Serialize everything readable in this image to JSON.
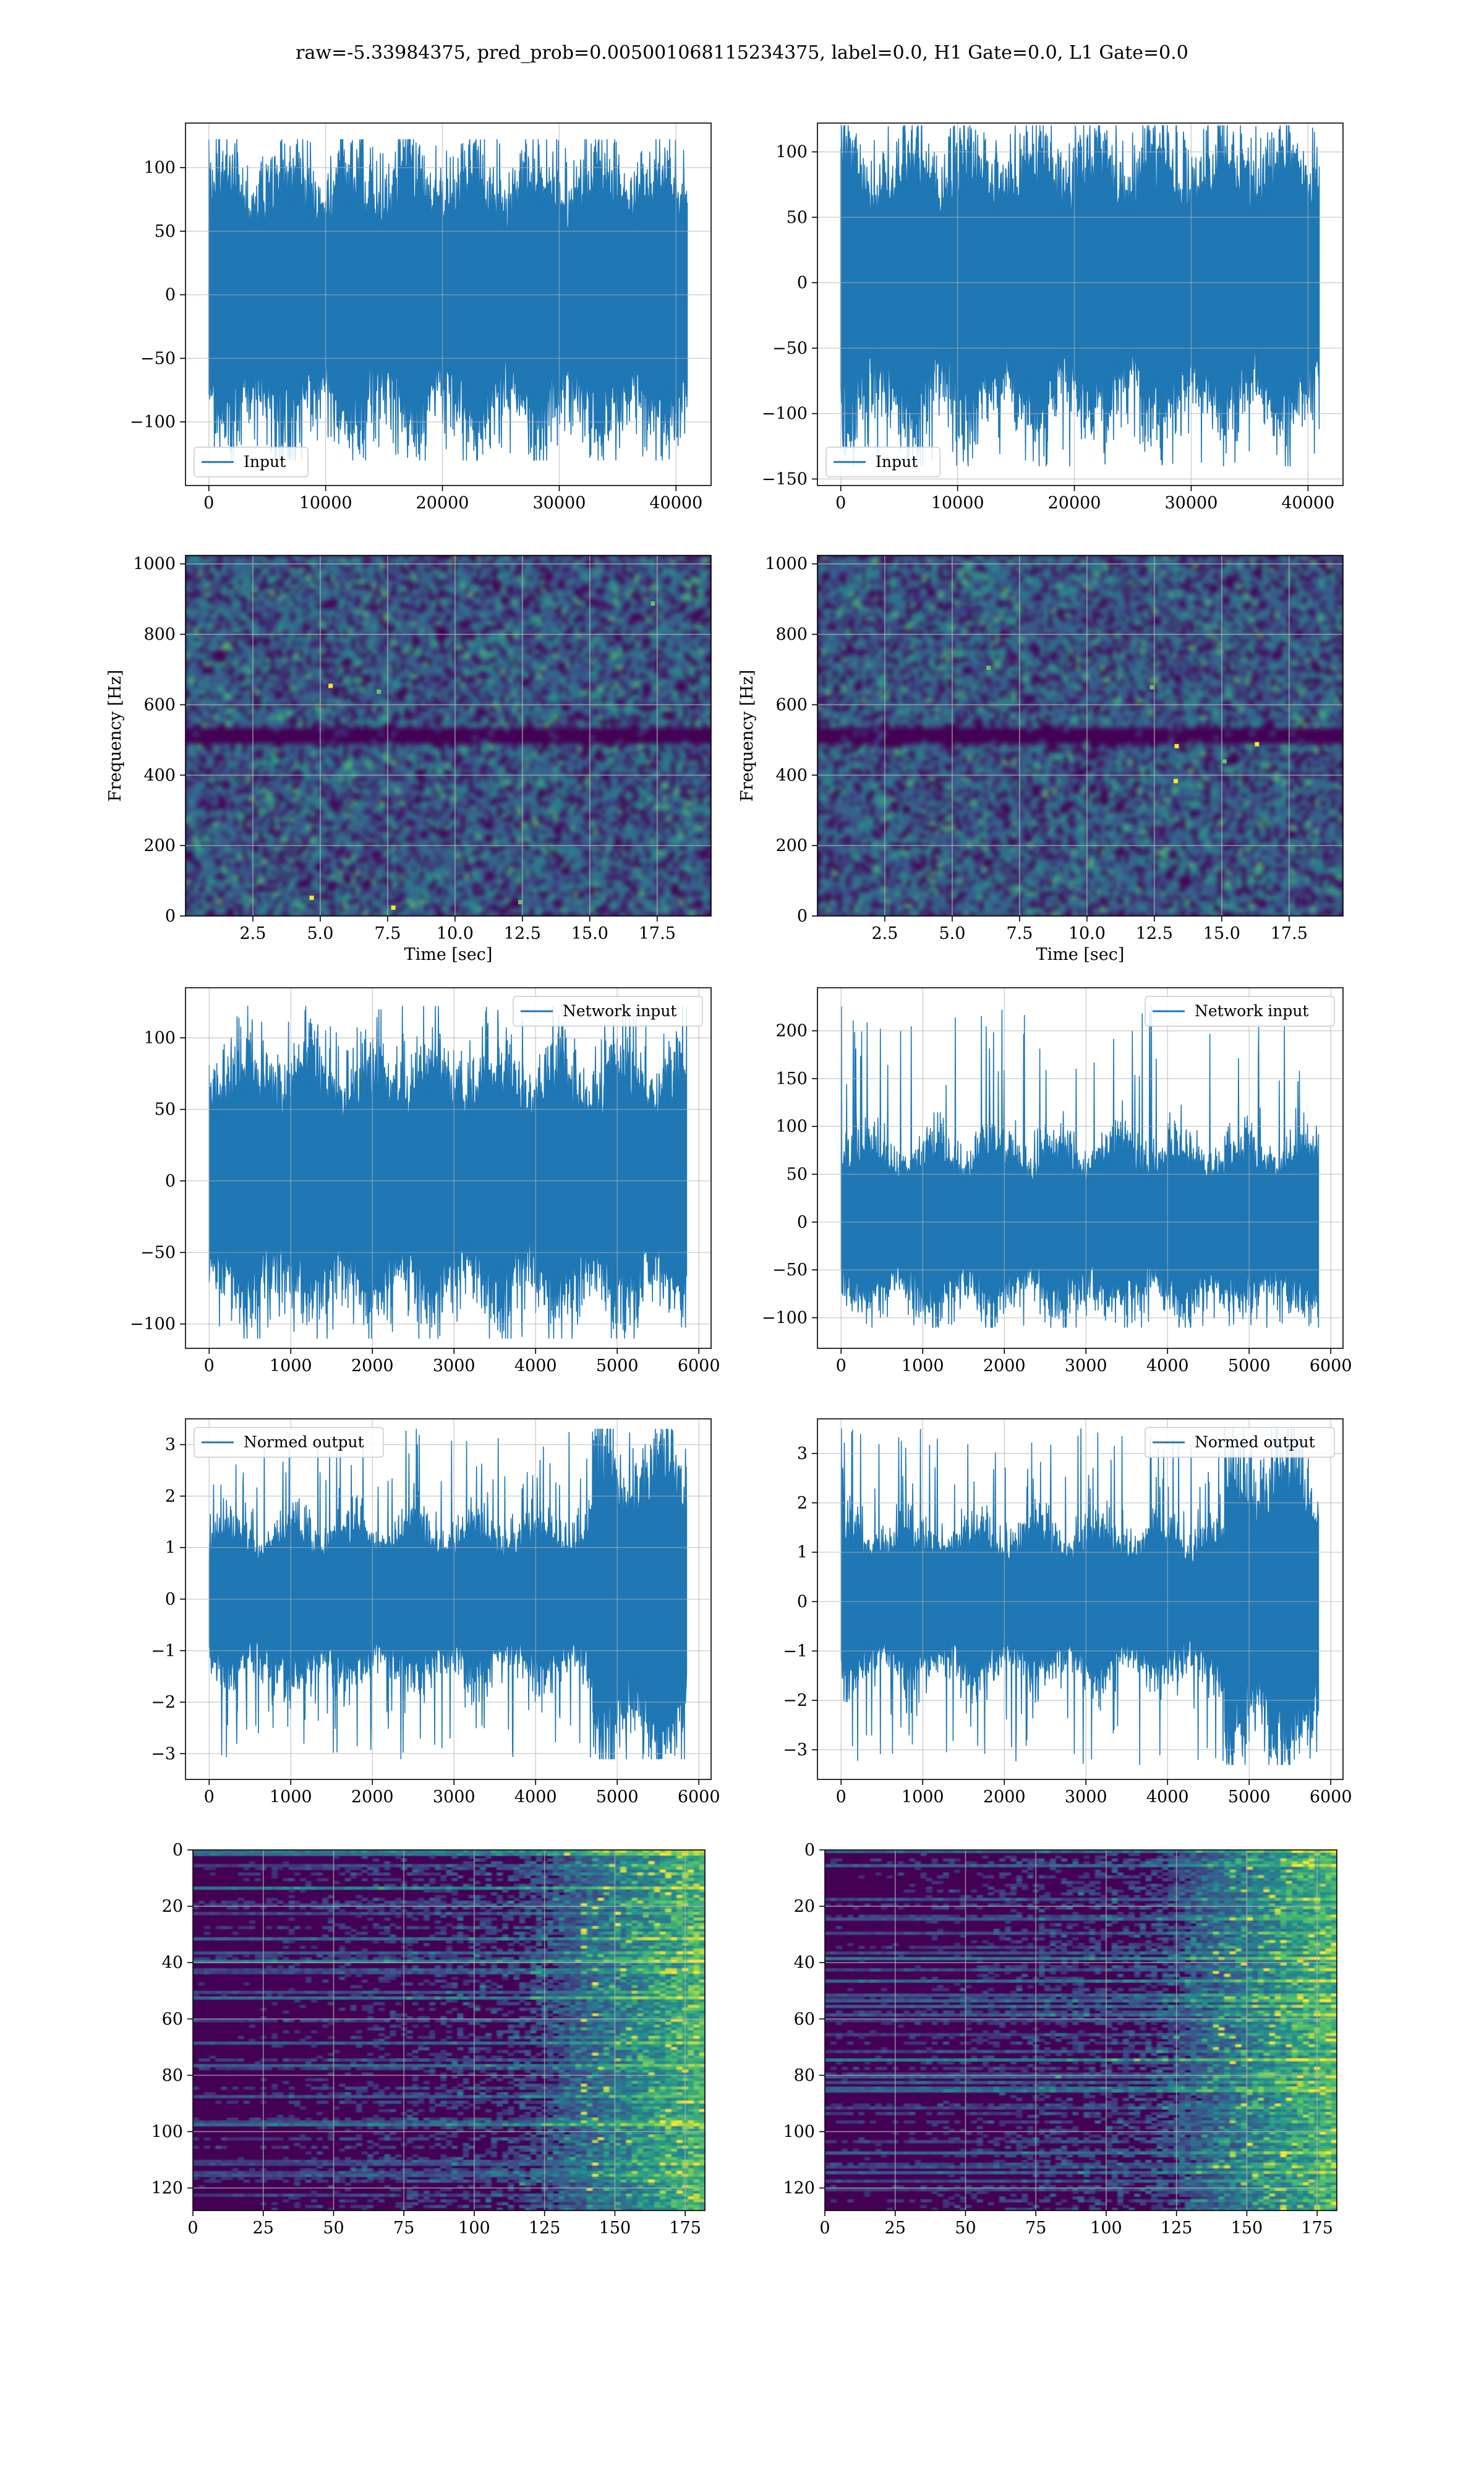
{
  "figure": {
    "suptitle": "raw=-5.33984375, pred_prob=0.005001068115234375, label=0.0, H1 Gate=0.0, L1 Gate=0.0"
  },
  "colors": {
    "line": "#1f77b4",
    "grid": "#b0b0b0",
    "heat_low": "#440154",
    "heat_mid": "#3b528b",
    "heat_teal": "#21908d",
    "heat_green": "#5dc863",
    "heat_high": "#fde725"
  },
  "chart_data": [
    {
      "type": "line",
      "panel": "row1-left",
      "xlabel": "",
      "ylabel": "",
      "xlim": [
        -2000,
        43000
      ],
      "ylim": [
        -150,
        135
      ],
      "xticks": [
        0,
        10000,
        20000,
        30000,
        40000
      ],
      "yticks": [
        -100,
        -50,
        0,
        50,
        100
      ],
      "grid": true,
      "legend": "lower left",
      "series": [
        {
          "name": "Input",
          "n_samples": 40960,
          "x_range": [
            0,
            40960
          ],
          "core_amplitude": 55,
          "peak_range": [
            -130,
            122
          ]
        }
      ]
    },
    {
      "type": "line",
      "panel": "row1-right",
      "xlabel": "",
      "ylabel": "",
      "xlim": [
        -2000,
        43000
      ],
      "ylim": [
        -155,
        122
      ],
      "xticks": [
        0,
        10000,
        20000,
        30000,
        40000
      ],
      "yticks": [
        -150,
        -100,
        -50,
        0,
        50,
        100
      ],
      "grid": true,
      "legend": "lower left",
      "series": [
        {
          "name": "Input",
          "n_samples": 40960,
          "x_range": [
            0,
            40960
          ],
          "core_amplitude": 55,
          "peak_range": [
            -140,
            120
          ]
        }
      ]
    },
    {
      "type": "heatmap",
      "panel": "row2-left",
      "xlabel": "Time [sec]",
      "ylabel": "Frequency [Hz]",
      "xlim": [
        0,
        19.5
      ],
      "ylim": [
        0,
        1024
      ],
      "xticks": [
        2.5,
        5.0,
        7.5,
        10.0,
        12.5,
        15.0,
        17.5
      ],
      "yticks": [
        0,
        200,
        400,
        600,
        800,
        1000
      ],
      "grid": true,
      "colormap": "viridis"
    },
    {
      "type": "heatmap",
      "panel": "row2-right",
      "xlabel": "Time [sec]",
      "ylabel": "Frequency [Hz]",
      "xlim": [
        0,
        19.5
      ],
      "ylim": [
        0,
        1024
      ],
      "xticks": [
        2.5,
        5.0,
        7.5,
        10.0,
        12.5,
        15.0,
        17.5
      ],
      "yticks": [
        0,
        200,
        400,
        600,
        800,
        1000
      ],
      "grid": true,
      "colormap": "viridis"
    },
    {
      "type": "line",
      "panel": "row3-left",
      "xlabel": "",
      "ylabel": "",
      "xlim": [
        -290,
        6150
      ],
      "ylim": [
        -117,
        135
      ],
      "xticks": [
        0,
        1000,
        2000,
        3000,
        4000,
        5000,
        6000
      ],
      "yticks": [
        -100,
        -50,
        0,
        50,
        100
      ],
      "grid": true,
      "legend": "upper right",
      "series": [
        {
          "name": "Network input",
          "n_samples": 5850,
          "x_range": [
            0,
            5850
          ],
          "core_amplitude": 45,
          "peak_range": [
            -110,
            122
          ]
        }
      ]
    },
    {
      "type": "line",
      "panel": "row3-right",
      "xlabel": "",
      "ylabel": "",
      "xlim": [
        -290,
        6150
      ],
      "ylim": [
        -132,
        245
      ],
      "xticks": [
        0,
        1000,
        2000,
        3000,
        4000,
        5000,
        6000
      ],
      "yticks": [
        -100,
        -50,
        0,
        50,
        100,
        150,
        200
      ],
      "grid": true,
      "legend": "upper right",
      "series": [
        {
          "name": "Network input",
          "n_samples": 5850,
          "x_range": [
            0,
            5850
          ],
          "core_amplitude": 45,
          "peak_range": [
            -110,
            225
          ]
        }
      ]
    },
    {
      "type": "line",
      "panel": "row4-left",
      "xlabel": "",
      "ylabel": "",
      "xlim": [
        -290,
        6150
      ],
      "ylim": [
        -3.5,
        3.5
      ],
      "xticks": [
        0,
        1000,
        2000,
        3000,
        4000,
        5000,
        6000
      ],
      "yticks": [
        -3,
        -2,
        -1,
        0,
        1,
        2,
        3
      ],
      "grid": true,
      "legend": "upper left",
      "series": [
        {
          "name": "Normed output",
          "n_samples": 5850,
          "x_range": [
            0,
            5850
          ],
          "core_amplitude": 0.8,
          "burst_range": [
            4700,
            5850
          ],
          "peak_range": [
            -3.1,
            3.3
          ]
        }
      ]
    },
    {
      "type": "line",
      "panel": "row4-right",
      "xlabel": "",
      "ylabel": "",
      "xlim": [
        -290,
        6150
      ],
      "ylim": [
        -3.6,
        3.7
      ],
      "xticks": [
        0,
        1000,
        2000,
        3000,
        4000,
        5000,
        6000
      ],
      "yticks": [
        -3,
        -2,
        -1,
        0,
        1,
        2,
        3
      ],
      "grid": true,
      "legend": "upper right",
      "series": [
        {
          "name": "Normed output",
          "n_samples": 5850,
          "x_range": [
            0,
            5850
          ],
          "core_amplitude": 0.8,
          "burst_range": [
            4700,
            5850
          ],
          "peak_range": [
            -3.3,
            3.5
          ]
        }
      ]
    },
    {
      "type": "heatmap",
      "panel": "row5-left",
      "xlabel": "",
      "ylabel": "",
      "xlim": [
        0,
        182
      ],
      "ylim": [
        128,
        0
      ],
      "xticks": [
        0,
        25,
        50,
        75,
        100,
        125,
        150,
        175
      ],
      "yticks": [
        0,
        20,
        40,
        60,
        80,
        100,
        120
      ],
      "grid": true,
      "colormap": "viridis"
    },
    {
      "type": "heatmap",
      "panel": "row5-right",
      "xlabel": "",
      "ylabel": "",
      "xlim": [
        0,
        182
      ],
      "ylim": [
        128,
        0
      ],
      "xticks": [
        0,
        25,
        50,
        75,
        100,
        125,
        150,
        175
      ],
      "yticks": [
        0,
        20,
        40,
        60,
        80,
        100,
        120
      ],
      "grid": true,
      "colormap": "viridis"
    }
  ]
}
